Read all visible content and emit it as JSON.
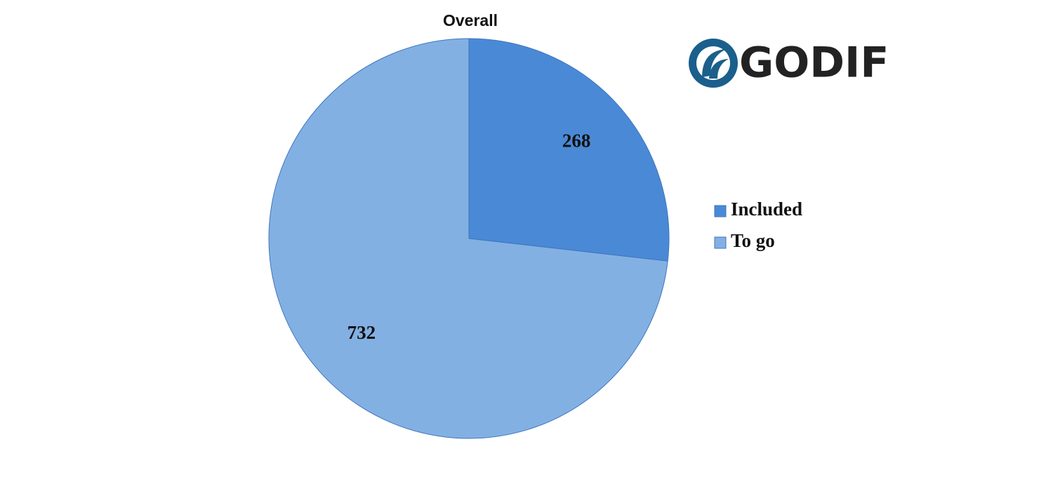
{
  "chart_data": {
    "type": "pie",
    "title": "Overall",
    "categories": [
      "Included",
      "To go"
    ],
    "values": [
      268,
      732
    ],
    "colors": [
      "#4a89d6",
      "#83b0e3"
    ],
    "legend": "right"
  },
  "logo": {
    "text": "GODIF"
  }
}
